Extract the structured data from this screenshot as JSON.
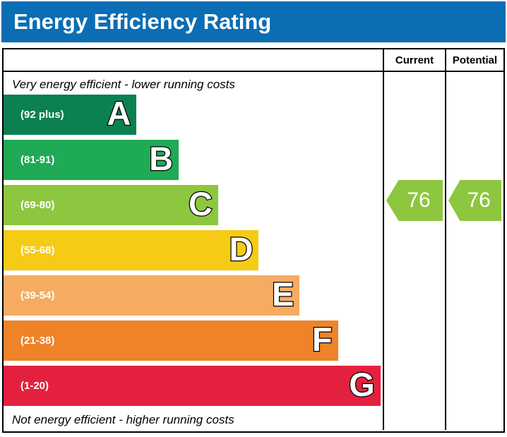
{
  "title": "Energy Efficiency Rating",
  "columns": {
    "current": "Current",
    "potential": "Potential"
  },
  "top_note": "Very energy efficient - lower running costs",
  "bottom_note": "Not energy efficient - higher running costs",
  "colors": {
    "title_bar_bg": "#0b6db4",
    "title_text": "#ffffff",
    "border": "#000000",
    "arrow_fill": "#8dc63f"
  },
  "chart_data": {
    "type": "bar",
    "title": "Energy Efficiency Rating",
    "orientation": "horizontal",
    "bands": [
      {
        "letter": "A",
        "range": "(92 plus)",
        "min": 92,
        "max": 100,
        "color": "#0b8152",
        "width_pct": 35.1
      },
      {
        "letter": "B",
        "range": "(81-91)",
        "min": 81,
        "max": 91,
        "color": "#1faa55",
        "width_pct": 46.2
      },
      {
        "letter": "C",
        "range": "(69-80)",
        "min": 69,
        "max": 80,
        "color": "#8dc63f",
        "width_pct": 56.6
      },
      {
        "letter": "D",
        "range": "(55-68)",
        "min": 55,
        "max": 68,
        "color": "#f5cb15",
        "width_pct": 67.3
      },
      {
        "letter": "E",
        "range": "(39-54)",
        "min": 39,
        "max": 54,
        "color": "#f6ab62",
        "width_pct": 78.1
      },
      {
        "letter": "F",
        "range": "(21-38)",
        "min": 21,
        "max": 38,
        "color": "#ee8329",
        "width_pct": 88.2
      },
      {
        "letter": "G",
        "range": "(1-20)",
        "min": 1,
        "max": 20,
        "color": "#e4203f",
        "width_pct": 99.4
      }
    ],
    "current": {
      "value": 76,
      "band": "C"
    },
    "potential": {
      "value": 76,
      "band": "C"
    }
  }
}
